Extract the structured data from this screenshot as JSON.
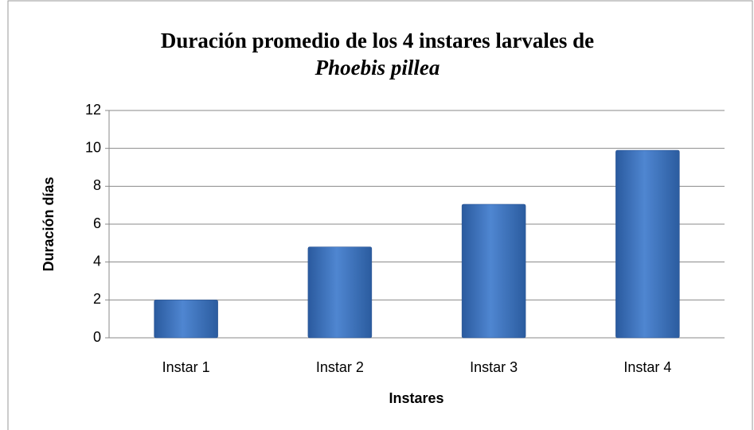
{
  "chart_data": {
    "type": "bar",
    "title": [
      "Duración promedio de los 4 instares larvales de",
      "Phoebis pillea"
    ],
    "x_label": "Instares",
    "y_label": "Duración días",
    "categories": [
      "Instar 1",
      "Instar 2",
      "Instar 3",
      "Instar 4"
    ],
    "values": [
      2.0,
      4.8,
      7.05,
      9.9
    ],
    "color": "#3f74bf",
    "ylim": [
      0,
      12
    ],
    "yticks": [
      0,
      2,
      4,
      6,
      8,
      10,
      12
    ],
    "grid": true
  }
}
